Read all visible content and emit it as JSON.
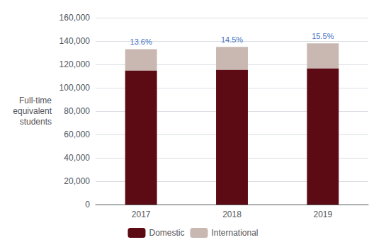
{
  "chart_data": {
    "type": "bar",
    "stacked": true,
    "ylabel": "Full-time\nequivalent\nstudents",
    "categories": [
      "2017",
      "2018",
      "2019"
    ],
    "series": [
      {
        "name": "Domestic",
        "color": "#5c0a14",
        "values": [
          114912,
          115425,
          116610
        ]
      },
      {
        "name": "International",
        "color": "#c9b8b2",
        "values": [
          18088,
          19575,
          21390
        ]
      }
    ],
    "annotations": [
      {
        "category": "2017",
        "text": "13.6%",
        "color": "#4472c4"
      },
      {
        "category": "2018",
        "text": "14.5%",
        "color": "#4472c4"
      },
      {
        "category": "2019",
        "text": "15.5%",
        "color": "#4472c4"
      }
    ],
    "ylim": [
      0,
      160000
    ],
    "yticks": [
      0,
      {
        "value": 20000,
        "label": "20,000"
      },
      {
        "value": 40000,
        "label": "40,000"
      },
      {
        "value": 60000,
        "label": "60,000"
      },
      {
        "value": 80000,
        "label": "80,000"
      },
      {
        "value": 100000,
        "label": "100,000"
      },
      {
        "value": 120000,
        "label": "120,000"
      },
      {
        "value": 140000,
        "label": "140,000"
      },
      {
        "value": 160000,
        "label": "160,000"
      }
    ],
    "grid": true,
    "legend": "bottom"
  }
}
